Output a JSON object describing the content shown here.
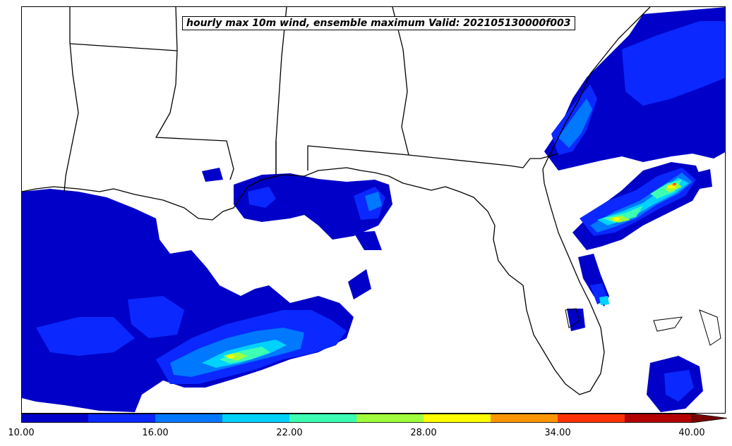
{
  "title": "hourly max 10m wind, ensemble maximum Valid: 202105130000f003",
  "colorbar": {
    "ticks": [
      "10.00",
      "16.00",
      "22.00",
      "28.00",
      "34.00",
      "40.00"
    ],
    "levels": [
      10,
      13,
      16,
      19,
      22,
      25,
      28,
      31,
      34,
      37,
      40
    ],
    "colors": [
      "#0000c8",
      "#0a28ff",
      "#0078ff",
      "#00d2ff",
      "#3cffb4",
      "#a0ff3c",
      "#ffff00",
      "#ff9600",
      "#ff3200",
      "#b40000"
    ],
    "extend_color": "#7a0000",
    "extend": "max"
  }
}
